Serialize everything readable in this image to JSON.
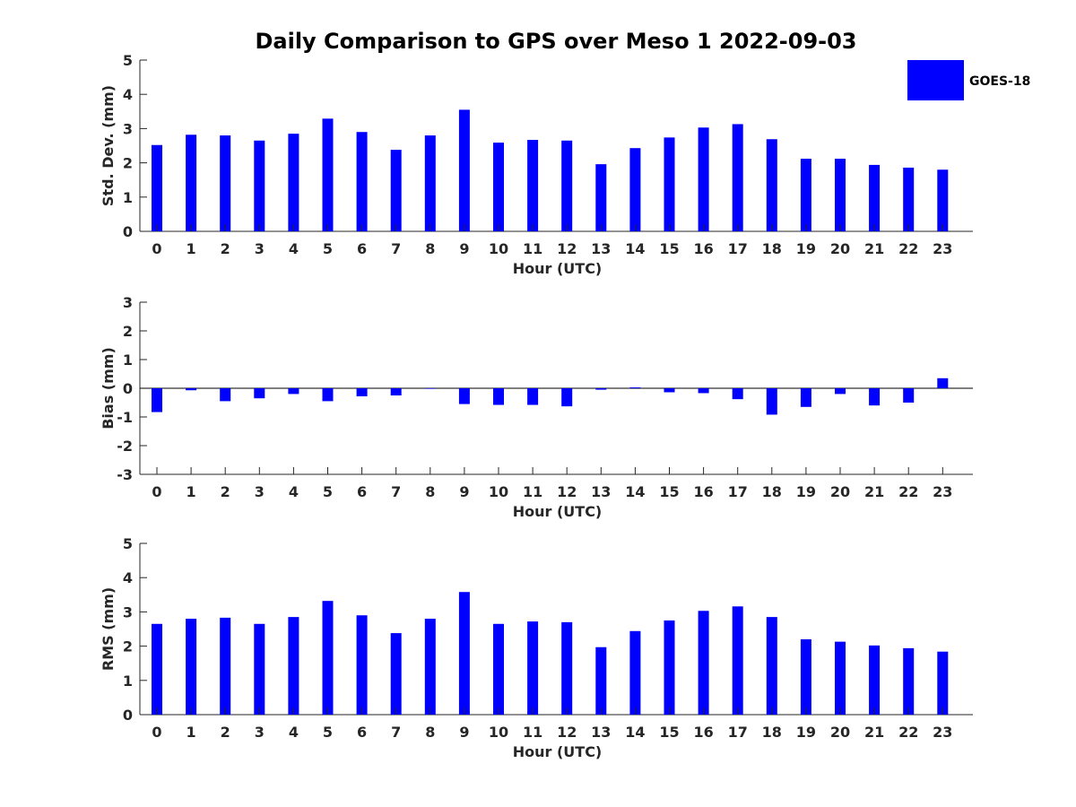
{
  "title": "Daily Comparison to GPS over Meso 1 2022-09-03",
  "legend": {
    "label": "GOES-18",
    "color": "#0000ff",
    "position": "top-right"
  },
  "chart_data": [
    {
      "type": "bar",
      "xlabel": "Hour (UTC)",
      "ylabel": "Std. Dev. (mm)",
      "ylim": [
        0,
        5
      ],
      "yticks": [
        0,
        1,
        2,
        3,
        4,
        5
      ],
      "categories": [
        "0",
        "1",
        "2",
        "3",
        "4",
        "5",
        "6",
        "7",
        "8",
        "9",
        "10",
        "11",
        "12",
        "13",
        "14",
        "15",
        "16",
        "17",
        "18",
        "19",
        "20",
        "21",
        "22",
        "23"
      ],
      "series": [
        {
          "name": "GOES-18",
          "color": "#0000ff",
          "values": [
            2.52,
            2.82,
            2.8,
            2.65,
            2.85,
            3.29,
            2.9,
            2.38,
            2.8,
            3.55,
            2.59,
            2.67,
            2.65,
            1.96,
            2.43,
            2.74,
            3.03,
            3.13,
            2.69,
            2.12,
            2.12,
            1.94,
            1.86,
            1.8
          ]
        }
      ]
    },
    {
      "type": "bar",
      "xlabel": "Hour (UTC)",
      "ylabel": "Bias (mm)",
      "ylim": [
        -3,
        3
      ],
      "yticks": [
        -3,
        -2,
        -1,
        0,
        1,
        2,
        3
      ],
      "zero_line": true,
      "categories": [
        "0",
        "1",
        "2",
        "3",
        "4",
        "5",
        "6",
        "7",
        "8",
        "9",
        "10",
        "11",
        "12",
        "13",
        "14",
        "15",
        "16",
        "17",
        "18",
        "19",
        "20",
        "21",
        "22",
        "23"
      ],
      "series": [
        {
          "name": "GOES-18",
          "color": "#0000ff",
          "values": [
            -0.83,
            -0.07,
            -0.45,
            -0.35,
            -0.2,
            -0.45,
            -0.28,
            -0.25,
            -0.02,
            -0.55,
            -0.58,
            -0.58,
            -0.63,
            -0.05,
            0.03,
            -0.14,
            -0.17,
            -0.38,
            -0.92,
            -0.65,
            -0.2,
            -0.6,
            -0.5,
            0.35
          ]
        }
      ]
    },
    {
      "type": "bar",
      "xlabel": "Hour (UTC)",
      "ylabel": "RMS (mm)",
      "ylim": [
        0,
        5
      ],
      "yticks": [
        0,
        1,
        2,
        3,
        4,
        5
      ],
      "categories": [
        "0",
        "1",
        "2",
        "3",
        "4",
        "5",
        "6",
        "7",
        "8",
        "9",
        "10",
        "11",
        "12",
        "13",
        "14",
        "15",
        "16",
        "17",
        "18",
        "19",
        "20",
        "21",
        "22",
        "23"
      ],
      "series": [
        {
          "name": "GOES-18",
          "color": "#0000ff",
          "values": [
            2.65,
            2.8,
            2.83,
            2.65,
            2.85,
            3.32,
            2.9,
            2.38,
            2.8,
            3.58,
            2.65,
            2.72,
            2.7,
            1.97,
            2.44,
            2.75,
            3.03,
            3.16,
            2.85,
            2.2,
            2.13,
            2.02,
            1.94,
            1.84
          ]
        }
      ]
    }
  ]
}
